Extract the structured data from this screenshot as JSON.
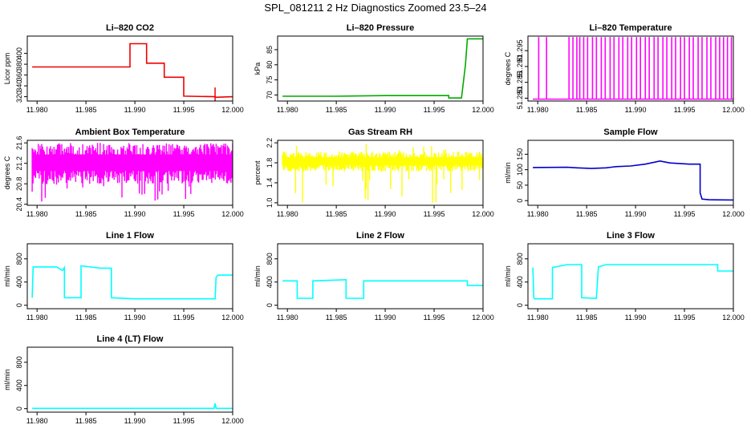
{
  "page": {
    "title": "SPL_081211  2 Hz Diagnostics Zoomed 23.5–24"
  },
  "chart_data": [
    {
      "type": "line",
      "title": "Li–820 CO2",
      "xlabel": "",
      "ylabel": "Licor ppm",
      "color": "#ee0000",
      "xlim": [
        11.979,
        12.0
      ],
      "ylim": [
        312,
        432
      ],
      "xticks": [
        "11.980",
        "11.985",
        "11.990",
        "11.995",
        "12.000"
      ],
      "xtick_values": [
        11.98,
        11.985,
        11.99,
        11.995,
        12.0
      ],
      "yticks": [
        "320",
        "340",
        "360",
        "380",
        "400"
      ],
      "ytick_values": [
        320,
        340,
        360,
        380,
        400
      ],
      "series": [
        {
          "x": [
            11.9795,
            11.9895,
            11.9895,
            11.9912,
            11.9912,
            11.993,
            11.993,
            11.995,
            11.995,
            11.9982,
            11.9983,
            12.0
          ],
          "y": [
            375,
            375,
            418,
            418,
            382,
            382,
            356,
            356,
            321,
            320,
            319,
            320
          ]
        }
      ]
    },
    {
      "type": "line",
      "title": "Li–820 Pressure",
      "xlabel": "",
      "ylabel": "kPa",
      "color": "#00aa00",
      "xlim": [
        11.979,
        12.0
      ],
      "ylim": [
        68,
        89.5
      ],
      "xticks": [
        "11.980",
        "11.985",
        "11.990",
        "11.995",
        "12.000"
      ],
      "xtick_values": [
        11.98,
        11.985,
        11.99,
        11.995,
        12.0
      ],
      "yticks": [
        "70",
        "75",
        "80",
        "85"
      ],
      "ytick_values": [
        70,
        75,
        80,
        85
      ],
      "series": [
        {
          "x": [
            11.9795,
            11.985,
            11.99,
            11.9965,
            11.9965,
            11.9978,
            11.9982,
            11.9984,
            12.0
          ],
          "y": [
            69.6,
            69.6,
            69.8,
            69.8,
            69.0,
            69.0,
            80.0,
            88.6,
            88.6
          ]
        }
      ]
    },
    {
      "type": "line",
      "title": "Li–820 Temperature",
      "xlabel": "",
      "ylabel": "degrees C",
      "color": "#ff00ff",
      "xlim": [
        11.979,
        12.0
      ],
      "ylim": [
        51.2791,
        51.2996
      ],
      "xticks": [
        "11.980",
        "11.985",
        "11.990",
        "11.995",
        "12.000"
      ],
      "xtick_values": [
        11.98,
        11.985,
        11.99,
        11.995,
        12.0
      ],
      "yticks": [
        "51.280",
        "51.285",
        "51.290",
        "51.295"
      ],
      "ytick_values": [
        51.28,
        51.285,
        51.29,
        51.295
      ],
      "baseline": 51.2797,
      "spike_top": 51.2993,
      "spikes_x": [
        11.9801,
        11.9809,
        11.9832,
        11.9836,
        11.984,
        11.9843,
        11.9847,
        11.9851,
        11.9856,
        11.986,
        11.9865,
        11.9869,
        11.9874,
        11.9878,
        11.9883,
        11.9887,
        11.9892,
        11.9896,
        11.9901,
        11.9905,
        11.991,
        11.9914,
        11.9919,
        11.9923,
        11.9928,
        11.9932,
        11.9937,
        11.9941,
        11.9946,
        11.995,
        11.9955,
        11.9959,
        11.9964,
        11.9968,
        11.9973,
        11.9977,
        11.9982,
        11.9986,
        11.999,
        11.9994,
        11.9998
      ]
    },
    {
      "type": "line",
      "title": "Ambient Box Temperature",
      "xlabel": "",
      "ylabel": "degrees C",
      "color": "#ff00ff",
      "xlim": [
        11.979,
        12.0
      ],
      "ylim": [
        20.38,
        21.65
      ],
      "xticks": [
        "11.980",
        "11.985",
        "11.990",
        "11.995",
        "12.000"
      ],
      "xtick_values": [
        11.98,
        11.985,
        11.99,
        11.995,
        12.0
      ],
      "yticks": [
        "20.4",
        "20.8",
        "21.2",
        "21.6"
      ],
      "ytick_values": [
        20.4,
        20.8,
        21.2,
        21.6
      ],
      "noise": {
        "x0": 11.9795,
        "x1": 12.0,
        "lo": 20.95,
        "hi": 21.45,
        "min": 20.45,
        "max": 21.6
      }
    },
    {
      "type": "line",
      "title": "Gas Stream RH",
      "xlabel": "",
      "ylabel": "percent",
      "color": "#ffff00",
      "xlim": [
        11.979,
        12.0
      ],
      "ylim": [
        0.95,
        2.25
      ],
      "xticks": [
        "11.980",
        "11.985",
        "11.990",
        "11.995",
        "12.000"
      ],
      "xtick_values": [
        11.98,
        11.985,
        11.99,
        11.995,
        12.0
      ],
      "yticks": [
        "1.0",
        "1.4",
        "1.8",
        "2.2"
      ],
      "ytick_values": [
        1.0,
        1.4,
        1.8,
        2.2
      ],
      "noise": {
        "x0": 11.9795,
        "x1": 12.0,
        "lo": 1.7,
        "hi": 1.95,
        "min": 1.0,
        "max": 2.2
      }
    },
    {
      "type": "line",
      "title": "Sample Flow",
      "xlabel": "",
      "ylabel": "ml/min",
      "color": "#0000cc",
      "xlim": [
        11.979,
        12.0
      ],
      "ylim": [
        -15,
        195
      ],
      "xticks": [
        "11.980",
        "11.985",
        "11.990",
        "11.995",
        "12.000"
      ],
      "xtick_values": [
        11.98,
        11.985,
        11.99,
        11.995,
        12.0
      ],
      "yticks": [
        "0",
        "50",
        "100",
        "150"
      ],
      "ytick_values": [
        0,
        50,
        100,
        150
      ],
      "series": [
        {
          "x": [
            11.9795,
            11.983,
            11.984,
            11.9855,
            11.987,
            11.988,
            11.9895,
            11.991,
            11.9925,
            11.9935,
            11.9945,
            11.9955,
            11.9966,
            11.9966,
            11.9968,
            11.9975,
            12.0
          ],
          "y": [
            107,
            108,
            106,
            104,
            106,
            110,
            112,
            118,
            128,
            122,
            120,
            118,
            118,
            25,
            5,
            3,
            2
          ]
        }
      ]
    },
    {
      "type": "line",
      "title": "Line 1 Flow",
      "xlabel": "",
      "ylabel": "ml/min",
      "color": "#00ffff",
      "xlim": [
        11.979,
        12.0
      ],
      "ylim": [
        -60,
        1060
      ],
      "xticks": [
        "11.980",
        "11.985",
        "11.990",
        "11.995",
        "12.000"
      ],
      "xtick_values": [
        11.98,
        11.985,
        11.99,
        11.995,
        12.0
      ],
      "yticks": [
        "0",
        "400",
        "800"
      ],
      "ytick_values": [
        0,
        400,
        800
      ],
      "series": [
        {
          "x": [
            11.9795,
            11.9796,
            11.982,
            11.9826,
            11.9828,
            11.9828,
            11.9845,
            11.9845,
            11.9865,
            11.9876,
            11.9876,
            11.99,
            11.9982,
            11.9983,
            11.9985,
            12.0
          ],
          "y": [
            130,
            660,
            660,
            600,
            650,
            130,
            130,
            680,
            640,
            640,
            130,
            110,
            110,
            480,
            520,
            520
          ]
        }
      ]
    },
    {
      "type": "line",
      "title": "Line 2 Flow",
      "xlabel": "",
      "ylabel": "ml/min",
      "color": "#00ffff",
      "xlim": [
        11.979,
        12.0
      ],
      "ylim": [
        -60,
        1060
      ],
      "xticks": [
        "11.980",
        "11.985",
        "11.990",
        "11.995",
        "12.000"
      ],
      "xtick_values": [
        11.98,
        11.985,
        11.99,
        11.995,
        12.0
      ],
      "yticks": [
        "0",
        "400",
        "800"
      ],
      "ytick_values": [
        0,
        400,
        800
      ],
      "series": [
        {
          "x": [
            11.9795,
            11.981,
            11.981,
            11.9826,
            11.9826,
            11.986,
            11.986,
            11.9878,
            11.9878,
            11.9984,
            11.9984,
            12.0
          ],
          "y": [
            420,
            420,
            120,
            120,
            420,
            440,
            120,
            120,
            420,
            420,
            340,
            340
          ]
        }
      ]
    },
    {
      "type": "line",
      "title": "Line 3 Flow",
      "xlabel": "",
      "ylabel": "ml/min",
      "color": "#00ffff",
      "xlim": [
        11.979,
        12.0
      ],
      "ylim": [
        -60,
        1060
      ],
      "xticks": [
        "11.980",
        "11.985",
        "11.990",
        "11.995",
        "12.000"
      ],
      "xtick_values": [
        11.98,
        11.985,
        11.99,
        11.995,
        12.0
      ],
      "yticks": [
        "0",
        "400",
        "800"
      ],
      "ytick_values": [
        0,
        400,
        800
      ],
      "series": [
        {
          "x": [
            11.9795,
            11.9796,
            11.9797,
            11.9815,
            11.9815,
            11.983,
            11.9845,
            11.9845,
            11.986,
            11.9862,
            11.987,
            11.9984,
            11.9984,
            12.0
          ],
          "y": [
            650,
            130,
            110,
            110,
            650,
            700,
            700,
            130,
            120,
            660,
            700,
            700,
            590,
            590
          ]
        }
      ]
    },
    {
      "type": "line",
      "title": "Line 4 (LT) Flow",
      "xlabel": "",
      "ylabel": "ml/min",
      "color": "#00ffff",
      "xlim": [
        11.979,
        12.0
      ],
      "ylim": [
        -60,
        1060
      ],
      "xticks": [
        "11.980",
        "11.985",
        "11.990",
        "11.995",
        "12.000"
      ],
      "xtick_values": [
        11.98,
        11.985,
        11.99,
        11.995,
        12.0
      ],
      "yticks": [
        "0",
        "400",
        "800"
      ],
      "ytick_values": [
        0,
        400,
        800
      ],
      "series": [
        {
          "x": [
            11.9795,
            11.9981,
            11.9982,
            11.9983,
            11.9985,
            12.0
          ],
          "y": [
            5,
            5,
            90,
            5,
            5,
            5
          ]
        }
      ]
    }
  ]
}
